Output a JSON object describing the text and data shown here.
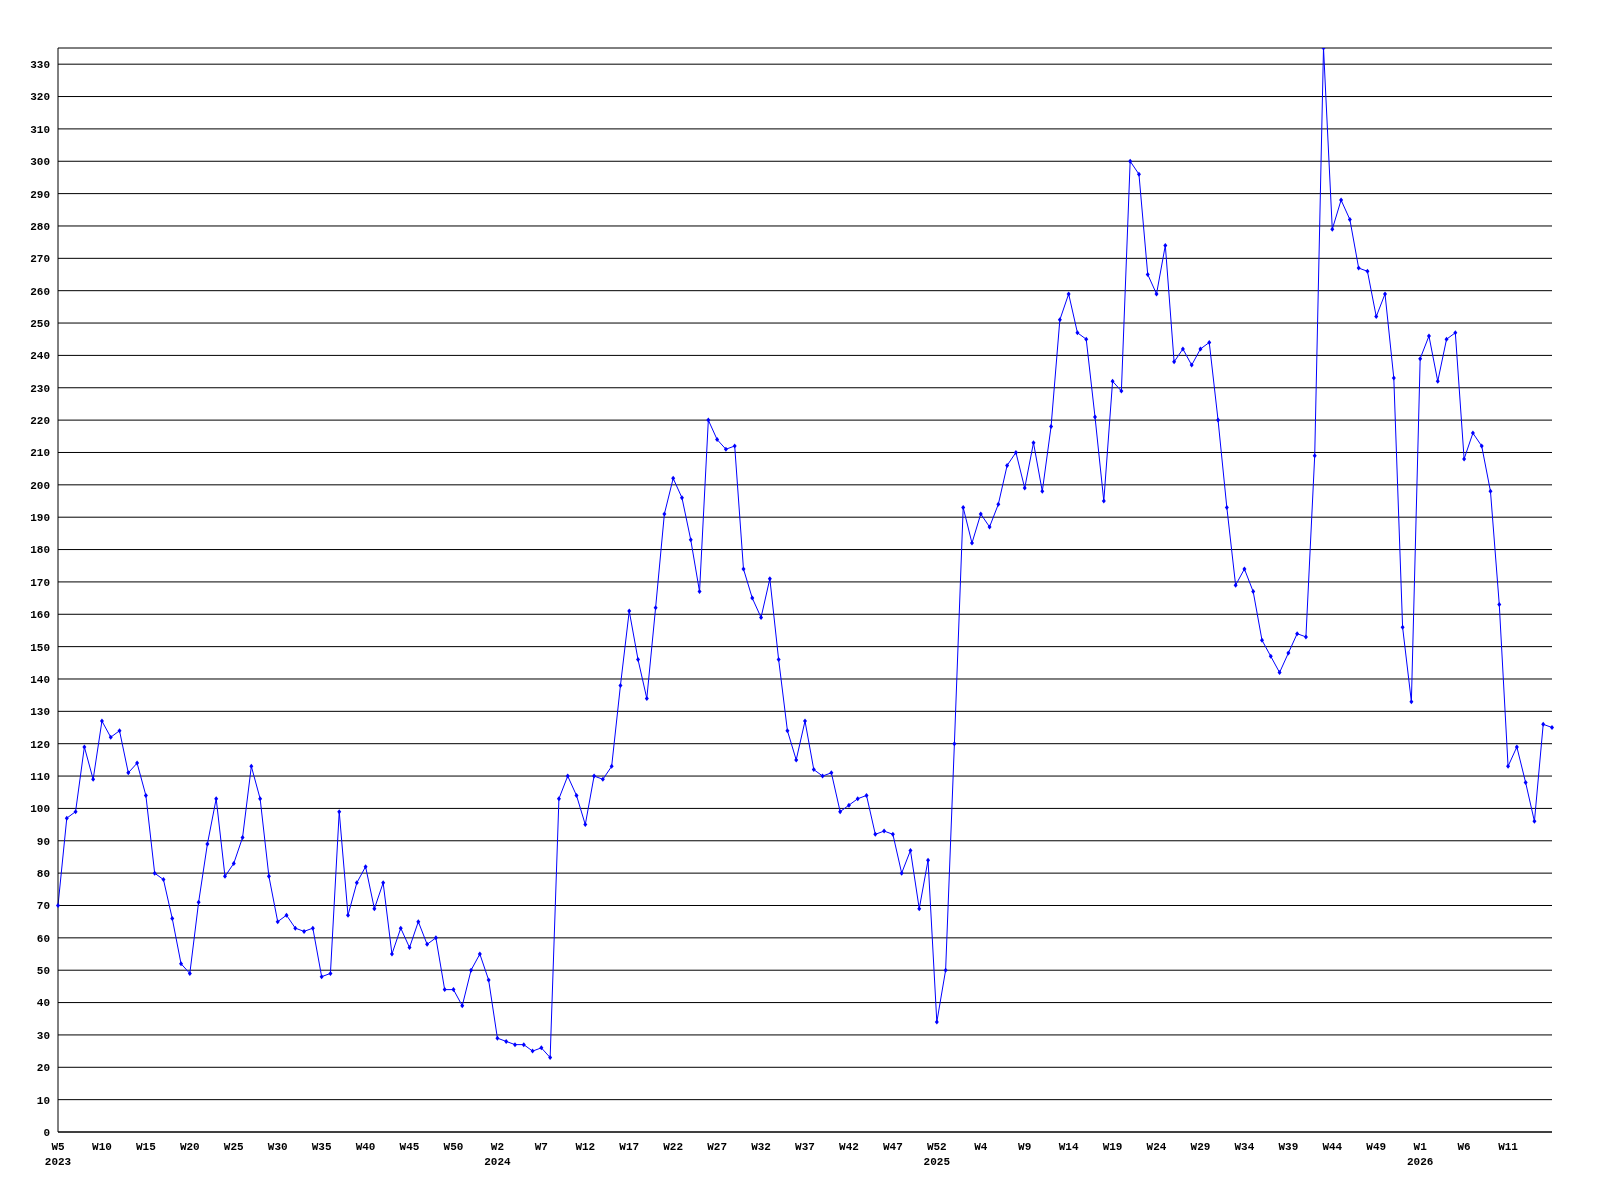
{
  "chart_data": {
    "type": "line",
    "categories": [
      "W5\n2023",
      null,
      null,
      null,
      null,
      "W10",
      null,
      null,
      null,
      null,
      "W15",
      null,
      null,
      null,
      null,
      "W20",
      null,
      null,
      null,
      null,
      "W25",
      null,
      null,
      null,
      null,
      "W30",
      null,
      null,
      null,
      null,
      "W35",
      null,
      null,
      null,
      null,
      "W40",
      null,
      null,
      null,
      null,
      "W45",
      null,
      null,
      null,
      null,
      "W50",
      null,
      null,
      null,
      null,
      "W2\n2024",
      null,
      null,
      null,
      null,
      "W7",
      null,
      null,
      null,
      null,
      "W12",
      null,
      null,
      null,
      null,
      "W17",
      null,
      null,
      null,
      null,
      "W22",
      null,
      null,
      null,
      null,
      "W27",
      null,
      null,
      null,
      null,
      "W32",
      null,
      null,
      null,
      null,
      "W37",
      null,
      null,
      null,
      null,
      "W42",
      null,
      null,
      null,
      null,
      "W47",
      null,
      null,
      null,
      null,
      "W52\n2025",
      null,
      null,
      null,
      null,
      "W4",
      null,
      null,
      null,
      null,
      "W9",
      null,
      null,
      null,
      null,
      "W14",
      null,
      null,
      null,
      null,
      "W19",
      null,
      null,
      null,
      null,
      "W24",
      null,
      null,
      null,
      null,
      "W29",
      null,
      null,
      null,
      null,
      "W34",
      null,
      null,
      null,
      null,
      "W39",
      null,
      null,
      null,
      null,
      "W44",
      null,
      null,
      null,
      null,
      "W49",
      null,
      null,
      null,
      null,
      "W1\n2026",
      null,
      null,
      null,
      null,
      "W6",
      null,
      null,
      null,
      null,
      "W11",
      null,
      null,
      null,
      null,
      null
    ],
    "values": [
      70,
      97,
      99,
      119,
      109,
      127,
      122,
      124,
      111,
      114,
      104,
      80,
      78,
      66,
      52,
      49,
      71,
      89,
      103,
      79,
      83,
      91,
      113,
      103,
      79,
      65,
      67,
      63,
      62,
      63,
      48,
      49,
      99,
      67,
      77,
      82,
      69,
      77,
      55,
      63,
      57,
      65,
      58,
      60,
      44,
      44,
      39,
      50,
      55,
      47,
      29,
      28,
      27,
      27,
      25,
      26,
      23,
      103,
      110,
      104,
      95,
      110,
      109,
      113,
      138,
      161,
      146,
      134,
      162,
      191,
      202,
      196,
      183,
      167,
      220,
      214,
      211,
      212,
      174,
      165,
      159,
      171,
      146,
      124,
      115,
      127,
      112,
      110,
      111,
      99,
      101,
      103,
      104,
      92,
      93,
      92,
      80,
      87,
      69,
      84,
      34,
      50,
      120,
      193,
      182,
      191,
      187,
      194,
      206,
      210,
      199,
      213,
      198,
      218,
      251,
      259,
      247,
      245,
      221,
      195,
      232,
      229,
      300,
      296,
      265,
      259,
      274,
      238,
      242,
      237,
      242,
      244,
      220,
      193,
      169,
      174,
      167,
      152,
      147,
      142,
      148,
      154,
      153,
      209,
      335,
      279,
      288,
      282,
      267,
      266,
      252,
      259,
      233,
      156,
      133,
      239,
      246,
      232,
      245,
      247,
      208,
      216,
      212,
      198,
      163,
      113,
      119,
      108,
      96,
      126,
      125
    ],
    "color": "#0000ff",
    "ylim": [
      0,
      335
    ],
    "yticks": [
      0,
      10,
      20,
      30,
      40,
      50,
      60,
      70,
      80,
      90,
      100,
      110,
      120,
      130,
      140,
      150,
      160,
      170,
      180,
      190,
      200,
      210,
      220,
      230,
      240,
      250,
      260,
      270,
      280,
      290,
      300,
      310,
      320,
      330
    ],
    "grid": "y",
    "marker": "diamond"
  }
}
